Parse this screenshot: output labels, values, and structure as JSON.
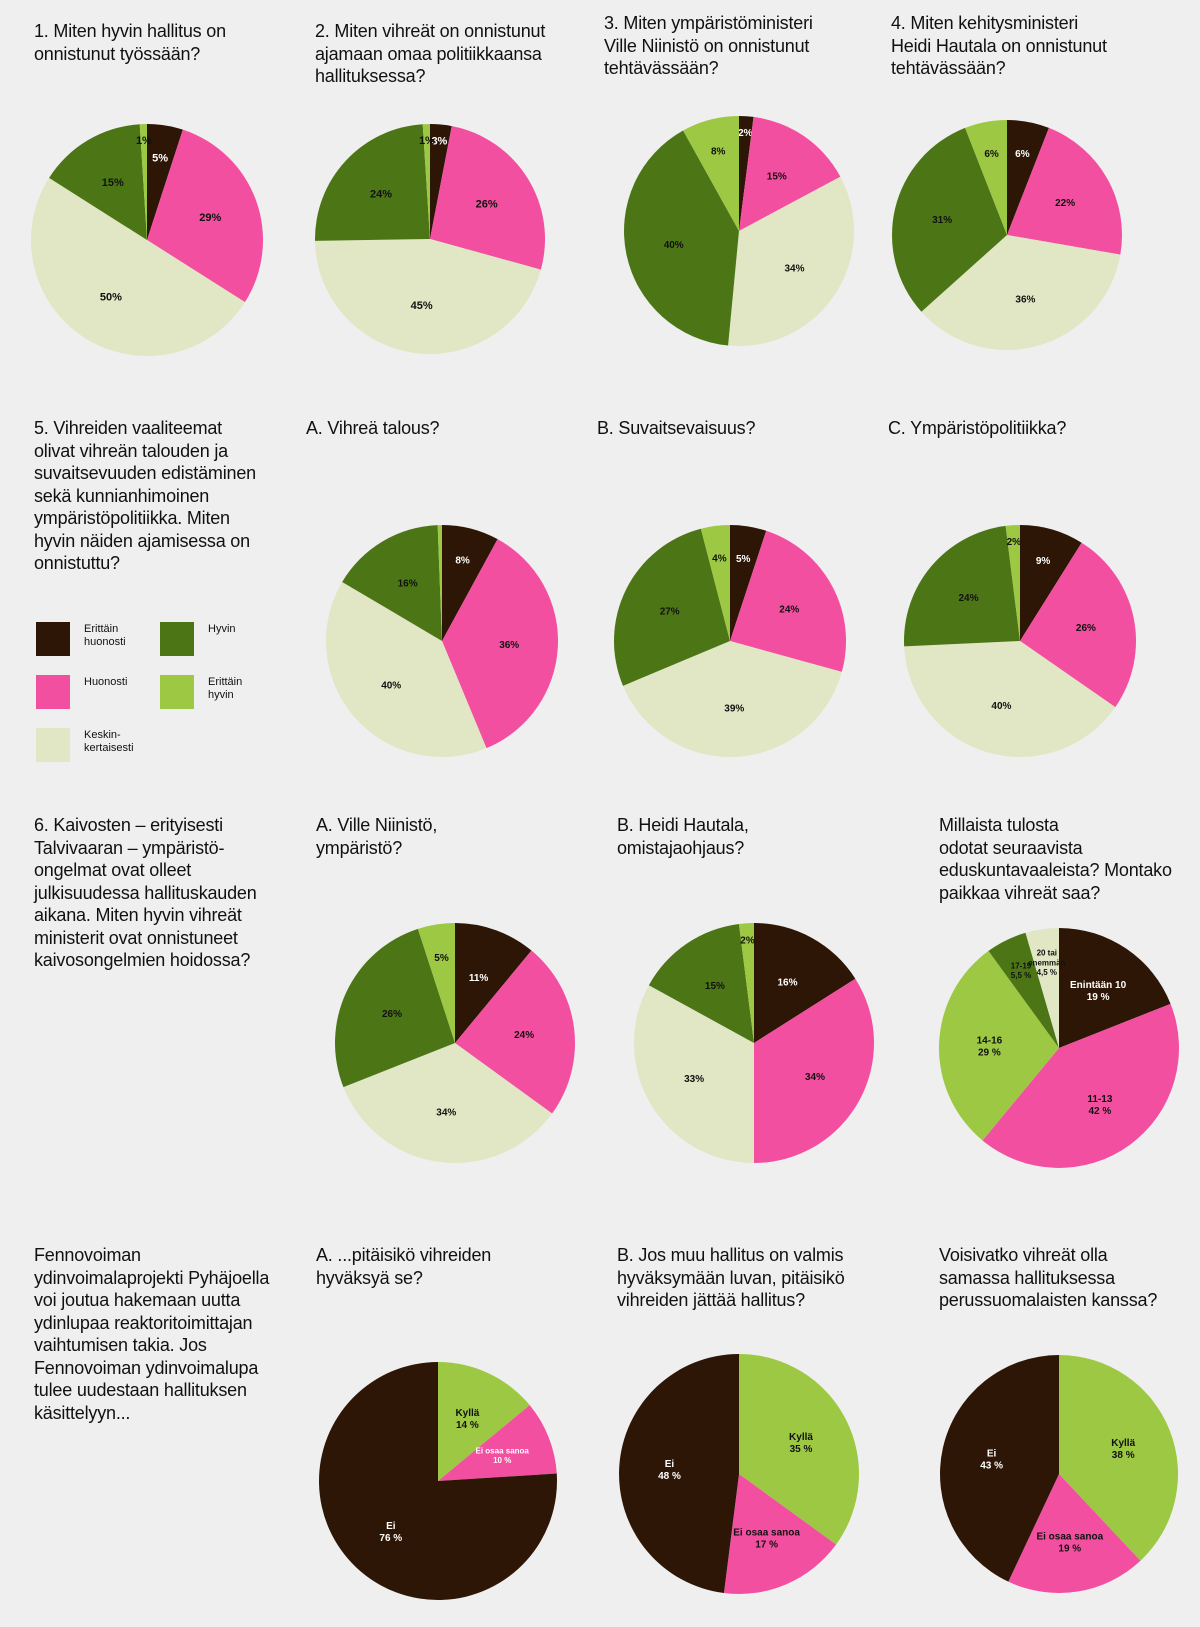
{
  "colors": {
    "erittain_huonosti": "#2d1605",
    "huonosti": "#f34fa0",
    "keskinkertaisesti": "#e1e6c4",
    "hyvin": "#4c7615",
    "erittain_hyvin": "#9dc843",
    "text_dark": "#111111",
    "text_light": "#ffffff"
  },
  "legend": {
    "items": [
      {
        "label": "Erittäin\nhuonosti",
        "color_key": "erittain_huonosti"
      },
      {
        "label": "Huonosti",
        "color_key": "huonosti"
      },
      {
        "label": "Keskin-\nkertaisesti",
        "color_key": "keskinkertaisesti"
      },
      {
        "label": "Hyvin",
        "color_key": "hyvin"
      },
      {
        "label": "Erittäin\nhyvin",
        "color_key": "erittain_hyvin"
      }
    ]
  },
  "questions": [
    {
      "id": "q1",
      "text": "1. Miten hyvin hallitus on\nonnistunut työssään?"
    },
    {
      "id": "q2",
      "text": "2. Miten vihreät on onnistunut\najamaan omaa politiikkaansa\nhallituksessa?"
    },
    {
      "id": "q3",
      "text": "3. Miten ympäristöministeri\nVille Niinistö on onnistunut\ntehtävässään?"
    },
    {
      "id": "q4",
      "text": "4. Miten kehitysministeri\nHeidi Hautala on onnistunut\ntehtävässään?"
    },
    {
      "id": "q5",
      "text": "5. Vihreiden vaaliteemat\nolivat vihreän talouden ja\nsuvaitsevuuden edistäminen\nsekä kunnianhimoinen\nympäristöpolitiikka. Miten\nhyvin näiden ajamisessa on\nonnistuttu?"
    },
    {
      "id": "q5a",
      "text": "A. Vihreä talous?"
    },
    {
      "id": "q5b",
      "text": "B. Suvaitsevaisuus?"
    },
    {
      "id": "q5c",
      "text": "C. Ympäristöpolitiikka?"
    },
    {
      "id": "q6",
      "text": "6. Kaivosten – erityisesti\nTalvivaaran – ympäristö-\nongelmat ovat olleet\njulkisuudessa hallituskauden\naikana. Miten hyvin vihreät\nministerit ovat onnistuneet\nkaivosongelmien hoidossa?"
    },
    {
      "id": "q6a",
      "text": "A. Ville Niinistö,\nympäristö?"
    },
    {
      "id": "q6b",
      "text": "B. Heidi Hautala,\nomistajaohjaus?"
    },
    {
      "id": "q7",
      "text": "Millaista tulosta\nodotat seuraavista\neduskuntavaaleista? Montako\npaikkaa vihreät saa?"
    },
    {
      "id": "q8",
      "text": "Fennovoiman\nydinvoimalaprojekti Pyhäjoella\nvoi joutua hakemaan uutta\nydinlupaa reaktoritoimittajan\nvaihtumisen takia. Jos\nFennovoiman ydinvoimalupa\ntulee uudestaan hallituksen\nkäsittelyyn..."
    },
    {
      "id": "q8a",
      "text": "A. ...pitäisikö vihreiden\nhyväksyä se?"
    },
    {
      "id": "q8b",
      "text": "B. Jos muu hallitus on valmis\nhyväksymään luvan, pitäisikö\nvihreiden jättää hallitus?"
    },
    {
      "id": "q9",
      "text": "Voisivatko vihreät olla\nsamassa hallituksessa\nperussuomalaisten kanssa?"
    }
  ],
  "chart_data": [
    {
      "id": "pie1",
      "type": "pie",
      "slices": [
        {
          "label": "5%",
          "value": 5,
          "color_key": "erittain_huonosti",
          "text": "light"
        },
        {
          "label": "29%",
          "value": 29,
          "color_key": "huonosti",
          "text": "dark"
        },
        {
          "label": "50%",
          "value": 50,
          "color_key": "keskinkertaisesti",
          "text": "dark"
        },
        {
          "label": "15%",
          "value": 15,
          "color_key": "hyvin",
          "text": "dark"
        },
        {
          "label": "1%",
          "value": 1,
          "color_key": "erittain_hyvin",
          "text": "dark"
        }
      ]
    },
    {
      "id": "pie2",
      "type": "pie",
      "slices": [
        {
          "label": "3%",
          "value": 3,
          "color_key": "erittain_huonosti",
          "text": "light"
        },
        {
          "label": "26%",
          "value": 26,
          "color_key": "huonosti",
          "text": "dark"
        },
        {
          "label": "45%",
          "value": 45,
          "color_key": "keskinkertaisesti",
          "text": "dark"
        },
        {
          "label": "24%",
          "value": 24,
          "color_key": "hyvin",
          "text": "dark"
        },
        {
          "label": "1%",
          "value": 1,
          "color_key": "erittain_hyvin",
          "text": "dark"
        }
      ]
    },
    {
      "id": "pie3",
      "type": "pie",
      "slices": [
        {
          "label": "2%",
          "value": 2,
          "color_key": "erittain_huonosti",
          "text": "light"
        },
        {
          "label": "15%",
          "value": 15,
          "color_key": "huonosti",
          "text": "dark"
        },
        {
          "label": "34%",
          "value": 34,
          "color_key": "keskinkertaisesti",
          "text": "dark"
        },
        {
          "label": "40%",
          "value": 40,
          "color_key": "hyvin",
          "text": "dark"
        },
        {
          "label": "8%",
          "value": 8,
          "color_key": "erittain_hyvin",
          "text": "dark"
        }
      ]
    },
    {
      "id": "pie4",
      "type": "pie",
      "slices": [
        {
          "label": "6%",
          "value": 6,
          "color_key": "erittain_huonosti",
          "text": "light"
        },
        {
          "label": "22%",
          "value": 22,
          "color_key": "huonosti",
          "text": "dark"
        },
        {
          "label": "36%",
          "value": 36,
          "color_key": "keskinkertaisesti",
          "text": "dark"
        },
        {
          "label": "31%",
          "value": 31,
          "color_key": "hyvin",
          "text": "dark"
        },
        {
          "label": "6%",
          "value": 6,
          "color_key": "erittain_hyvin",
          "text": "dark"
        }
      ]
    },
    {
      "id": "pie5a",
      "type": "pie",
      "slices": [
        {
          "label": "8%",
          "value": 8,
          "color_key": "erittain_huonosti",
          "text": "light"
        },
        {
          "label": "36%",
          "value": 36,
          "color_key": "huonosti",
          "text": "dark"
        },
        {
          "label": "40%",
          "value": 40,
          "color_key": "keskinkertaisesti",
          "text": "dark"
        },
        {
          "label": "16%",
          "value": 16,
          "color_key": "hyvin",
          "text": "dark"
        },
        {
          "label": "",
          "value": 0.6,
          "color_key": "erittain_hyvin",
          "text": "dark"
        }
      ]
    },
    {
      "id": "pie5b",
      "type": "pie",
      "slices": [
        {
          "label": "5%",
          "value": 5,
          "color_key": "erittain_huonosti",
          "text": "light"
        },
        {
          "label": "24%",
          "value": 24,
          "color_key": "huonosti",
          "text": "dark"
        },
        {
          "label": "39%",
          "value": 39,
          "color_key": "keskinkertaisesti",
          "text": "dark"
        },
        {
          "label": "27%",
          "value": 27,
          "color_key": "hyvin",
          "text": "dark"
        },
        {
          "label": "4%",
          "value": 4,
          "color_key": "erittain_hyvin",
          "text": "dark"
        }
      ]
    },
    {
      "id": "pie5c",
      "type": "pie",
      "slices": [
        {
          "label": "9%",
          "value": 9,
          "color_key": "erittain_huonosti",
          "text": "light"
        },
        {
          "label": "26%",
          "value": 26,
          "color_key": "huonosti",
          "text": "dark"
        },
        {
          "label": "40%",
          "value": 40,
          "color_key": "keskinkertaisesti",
          "text": "dark"
        },
        {
          "label": "24%",
          "value": 24,
          "color_key": "hyvin",
          "text": "dark"
        },
        {
          "label": "2%",
          "value": 2,
          "color_key": "erittain_hyvin",
          "text": "dark"
        }
      ]
    },
    {
      "id": "pie6a",
      "type": "pie",
      "slices": [
        {
          "label": "11%",
          "value": 11,
          "color_key": "erittain_huonosti",
          "text": "light"
        },
        {
          "label": "24%",
          "value": 24,
          "color_key": "huonosti",
          "text": "dark"
        },
        {
          "label": "34%",
          "value": 34,
          "color_key": "keskinkertaisesti",
          "text": "dark"
        },
        {
          "label": "26%",
          "value": 26,
          "color_key": "hyvin",
          "text": "dark"
        },
        {
          "label": "5%",
          "value": 5,
          "color_key": "erittain_hyvin",
          "text": "dark"
        }
      ]
    },
    {
      "id": "pie6b",
      "type": "pie",
      "slices": [
        {
          "label": "16%",
          "value": 16,
          "color_key": "erittain_huonosti",
          "text": "light"
        },
        {
          "label": "34%",
          "value": 34,
          "color_key": "huonosti",
          "text": "dark"
        },
        {
          "label": "33%",
          "value": 33,
          "color_key": "keskinkertaisesti",
          "text": "dark"
        },
        {
          "label": "15%",
          "value": 15,
          "color_key": "hyvin",
          "text": "dark"
        },
        {
          "label": "2%",
          "value": 2,
          "color_key": "erittain_hyvin",
          "text": "dark"
        }
      ]
    },
    {
      "id": "pie7",
      "type": "pie",
      "slices": [
        {
          "label": "Enintään 10\n19 %",
          "value": 19,
          "color_key": "erittain_huonosti",
          "text": "light"
        },
        {
          "label": "11-13\n42 %",
          "value": 42,
          "color_key": "huonosti",
          "text": "dark"
        },
        {
          "label": "14-16\n29 %",
          "value": 29,
          "color_key": "erittain_hyvin",
          "text": "dark"
        },
        {
          "label": "17-19\n5,5 %",
          "value": 5.5,
          "color_key": "hyvin",
          "text": "dark",
          "small": true
        },
        {
          "label": "20 tai\nenemmän\n4,5 %",
          "value": 4.5,
          "color_key": "keskinkertaisesti",
          "text": "dark",
          "small": true
        }
      ]
    },
    {
      "id": "pie8a",
      "type": "pie",
      "slices": [
        {
          "label": "Kyllä\n14 %",
          "value": 14,
          "color_key": "erittain_hyvin",
          "text": "dark"
        },
        {
          "label": "Ei osaa sanoa\n10 %",
          "value": 10,
          "color_key": "huonosti",
          "text": "light",
          "small": true
        },
        {
          "label": "Ei\n76 %",
          "value": 76,
          "color_key": "erittain_huonosti",
          "text": "light"
        }
      ]
    },
    {
      "id": "pie8b",
      "type": "pie",
      "slices": [
        {
          "label": "Kyllä\n35 %",
          "value": 35,
          "color_key": "erittain_hyvin",
          "text": "dark"
        },
        {
          "label": "Ei osaa sanoa\n17 %",
          "value": 17,
          "color_key": "huonosti",
          "text": "dark"
        },
        {
          "label": "Ei\n48 %",
          "value": 48,
          "color_key": "erittain_huonosti",
          "text": "light"
        }
      ]
    },
    {
      "id": "pie9",
      "type": "pie",
      "slices": [
        {
          "label": "Kyllä\n38 %",
          "value": 38,
          "color_key": "erittain_hyvin",
          "text": "dark"
        },
        {
          "label": "Ei osaa sanoa\n19 %",
          "value": 19,
          "color_key": "huonosti",
          "text": "dark"
        },
        {
          "label": "Ei\n43 %",
          "value": 43,
          "color_key": "erittain_huonosti",
          "text": "light"
        }
      ]
    }
  ]
}
